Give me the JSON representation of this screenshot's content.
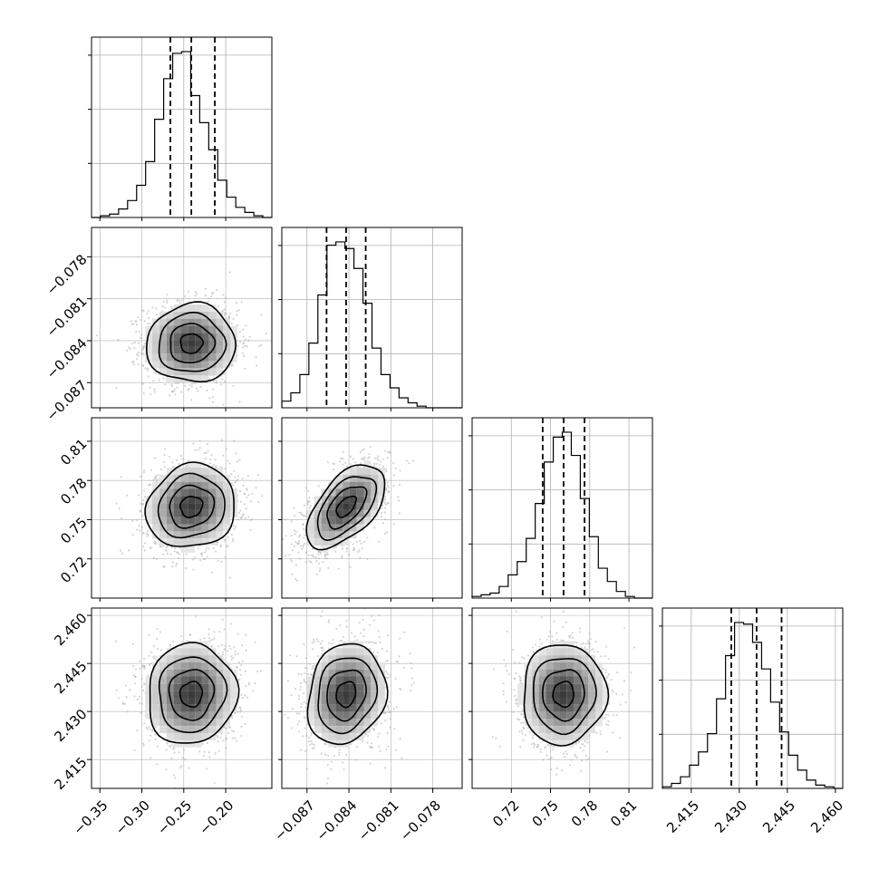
{
  "chart_data": {
    "type": "corner",
    "parameters": [
      {
        "id": "p0",
        "range": [
          -0.36,
          -0.145
        ],
        "ticks": [
          -0.35,
          -0.3,
          -0.25,
          -0.2
        ],
        "tick_labels": [
          "−0.35",
          "−0.30",
          "−0.25",
          "−0.20"
        ],
        "quantiles": [
          -0.266,
          -0.241,
          -0.213
        ],
        "hist_counts": [
          0,
          1,
          2,
          5,
          10,
          19,
          33,
          58,
          82,
          97,
          98,
          72,
          56,
          40,
          22,
          12,
          6,
          3,
          1,
          0
        ]
      },
      {
        "id": "p1",
        "range": [
          -0.0888,
          -0.0759
        ],
        "ticks": [
          -0.087,
          -0.084,
          -0.081,
          -0.078
        ],
        "tick_labels": [
          "−0.087",
          "−0.084",
          "−0.081",
          "−0.078"
        ],
        "quantiles": [
          -0.0856,
          -0.0842,
          -0.0828
        ],
        "hist_counts": [
          4,
          9,
          20,
          39,
          68,
          98,
          100,
          96,
          84,
          63,
          36,
          20,
          12,
          6,
          3,
          1,
          0,
          0,
          0,
          0
        ]
      },
      {
        "id": "p2",
        "range": [
          0.69,
          0.828
        ],
        "ticks": [
          0.72,
          0.75,
          0.78,
          0.81
        ],
        "tick_labels": [
          "0.72",
          "0.75",
          "0.78",
          "0.81"
        ],
        "quantiles": [
          0.744,
          0.76,
          0.776
        ],
        "hist_counts": [
          1,
          2,
          3,
          7,
          14,
          22,
          36,
          57,
          82,
          97,
          100,
          86,
          60,
          37,
          18,
          10,
          4,
          1,
          0,
          0
        ]
      },
      {
        "id": "p3",
        "range": [
          2.406,
          2.4623
        ],
        "ticks": [
          2.415,
          2.43,
          2.445,
          2.46
        ],
        "tick_labels": [
          "2.415",
          "2.430",
          "2.445",
          "2.460"
        ],
        "quantiles": [
          2.4275,
          2.4354,
          2.4432
        ],
        "hist_counts": [
          1,
          3,
          7,
          14,
          22,
          33,
          54,
          80,
          100,
          99,
          88,
          72,
          52,
          34,
          20,
          11,
          5,
          2,
          1,
          0
        ]
      }
    ],
    "pair_correlations": {
      "1_0": 0.02,
      "2_0": 0.1,
      "2_1": 0.55,
      "3_0": 0.05,
      "3_1": 0.15,
      "3_2": 0.02
    },
    "contour_levels": [
      0.5,
      1.0,
      1.5,
      2.0
    ],
    "grid": true,
    "colors": {
      "hist_line": "#000000",
      "quantile_line": "#000000",
      "scatter_points": "#b0b0b0",
      "density_dark": "#3a3a3a",
      "grid": "#b0b0b0"
    }
  }
}
